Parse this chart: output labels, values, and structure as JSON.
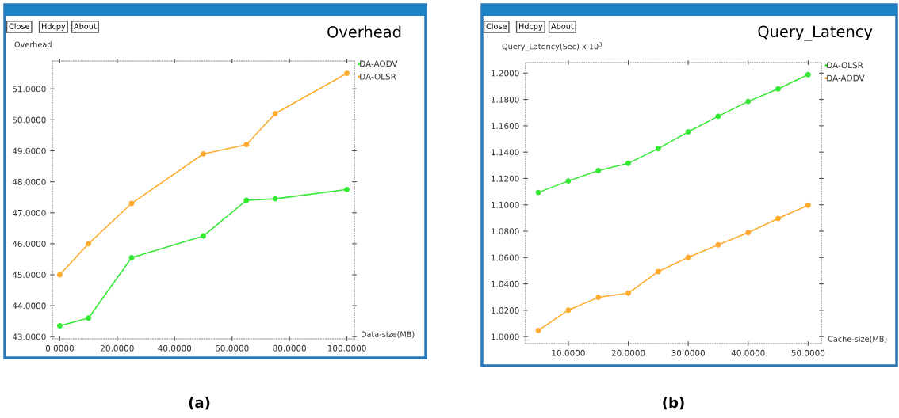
{
  "chart_data": [
    {
      "type": "line",
      "title": "Overhead",
      "ylabel": "Overhead",
      "xlabel": "Data-size(MB)",
      "annotations": [
        "Close",
        "Hdcpy",
        "About",
        "(a)"
      ],
      "x": [
        0,
        10,
        25,
        50,
        65,
        75,
        100
      ],
      "series": [
        {
          "name": "DA-AODV",
          "color": "#33e833",
          "values": [
            43.35,
            43.6,
            45.55,
            46.25,
            47.4,
            47.45,
            47.75
          ]
        },
        {
          "name": "DA-OLSR",
          "color": "#ffab2e",
          "values": [
            45.0,
            46.0,
            47.3,
            48.9,
            49.2,
            50.2,
            51.5
          ]
        }
      ],
      "xlim": [
        -2.6,
        102.6
      ],
      "ylim": [
        42.93,
        51.9
      ],
      "xticks": [
        {
          "value": 0,
          "label": "0.0000"
        },
        {
          "value": 20,
          "label": "20.0000"
        },
        {
          "value": 40,
          "label": "40.0000"
        },
        {
          "value": 60,
          "label": "60.0000"
        },
        {
          "value": 80,
          "label": "80.0000"
        },
        {
          "value": 100,
          "label": "100.0000"
        }
      ],
      "yticks": [
        {
          "value": 43,
          "label": "43.0000"
        },
        {
          "value": 44,
          "label": "44.0000"
        },
        {
          "value": 45,
          "label": "45.0000"
        },
        {
          "value": 46,
          "label": "46.0000"
        },
        {
          "value": 47,
          "label": "47.0000"
        },
        {
          "value": 48,
          "label": "48.0000"
        },
        {
          "value": 49,
          "label": "49.0000"
        },
        {
          "value": 50,
          "label": "50.0000"
        },
        {
          "value": 51,
          "label": "51.0000"
        }
      ],
      "grid": false,
      "legend": "top right",
      "marker": "circle",
      "line_style": "solid"
    },
    {
      "type": "line",
      "title": "Query_Latency",
      "ylabel": "Query_Latency(Sec) x 10$^{3}$",
      "xlabel": "Cache-size(MB)",
      "annotations": [
        "Close",
        "Hdcpy",
        "About",
        "(b)"
      ],
      "x": [
        5,
        10,
        15,
        20,
        25,
        30,
        35,
        40,
        45,
        50
      ],
      "series": [
        {
          "name": "DA-OLSR",
          "color": "#33e833",
          "values": [
            1.1094,
            1.1181,
            1.126,
            1.1315,
            1.1427,
            1.1554,
            1.1672,
            1.1785,
            1.188,
            1.1988
          ]
        },
        {
          "name": "DA-AODV",
          "color": "#ffab2e",
          "values": [
            1.0047,
            1.0201,
            1.0298,
            1.033,
            1.0494,
            1.0602,
            1.0697,
            1.079,
            1.0896,
            1.0997
          ]
        }
      ],
      "xlim": [
        2.87,
        52.2
      ],
      "ylim": [
        0.9947,
        1.208
      ],
      "xticks": [
        {
          "value": 10,
          "label": "10.0000"
        },
        {
          "value": 20,
          "label": "20.0000"
        },
        {
          "value": 30,
          "label": "30.0000"
        },
        {
          "value": 40,
          "label": "40.0000"
        },
        {
          "value": 50,
          "label": "50.0000"
        }
      ],
      "yticks": [
        {
          "value": 1.0,
          "label": "1.0000"
        },
        {
          "value": 1.02,
          "label": "1.0200"
        },
        {
          "value": 1.04,
          "label": "1.0400"
        },
        {
          "value": 1.06,
          "label": "1.0600"
        },
        {
          "value": 1.08,
          "label": "1.0800"
        },
        {
          "value": 1.1,
          "label": "1.1000"
        },
        {
          "value": 1.12,
          "label": "1.1200"
        },
        {
          "value": 1.14,
          "label": "1.1400"
        },
        {
          "value": 1.16,
          "label": "1.1600"
        },
        {
          "value": 1.18,
          "label": "1.1800"
        },
        {
          "value": 1.2,
          "label": "1.2000"
        }
      ],
      "grid": false,
      "legend": "top right",
      "marker": "circle",
      "line_style": "solid"
    }
  ]
}
